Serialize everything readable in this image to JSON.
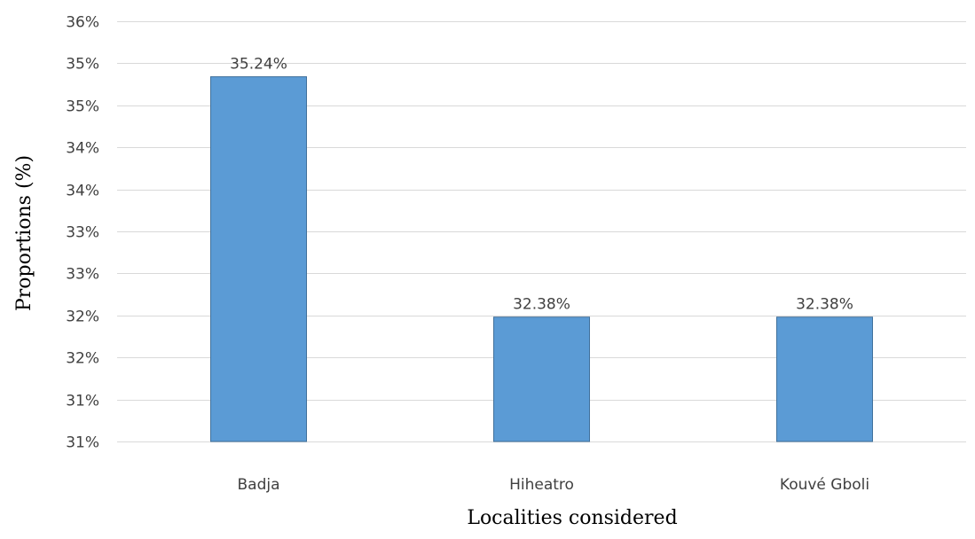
{
  "chart_data": {
    "type": "bar",
    "categories": [
      "Badja",
      "Hiheatro",
      "Kouvé Gboli"
    ],
    "values": [
      35.24,
      32.38,
      32.38
    ],
    "data_labels": [
      "35.24%",
      "32.38%",
      "32.38%"
    ],
    "xlabel": "Localities considered",
    "ylabel": "Proportions (%)",
    "ylim": [
      30.9,
      35.9
    ],
    "y_ticks": [
      {
        "value": 30.9,
        "label": "31%"
      },
      {
        "value": 31.4,
        "label": "31%"
      },
      {
        "value": 31.9,
        "label": "32%"
      },
      {
        "value": 32.4,
        "label": "32%"
      },
      {
        "value": 32.9,
        "label": "33%"
      },
      {
        "value": 33.4,
        "label": "33%"
      },
      {
        "value": 33.9,
        "label": "34%"
      },
      {
        "value": 34.4,
        "label": "34%"
      },
      {
        "value": 34.9,
        "label": "35%"
      },
      {
        "value": 35.4,
        "label": "35%"
      },
      {
        "value": 35.9,
        "label": "36%"
      }
    ],
    "grid": true,
    "bar_color": "#5b9bd5",
    "bar_border_color": "#41719c",
    "grid_color": "#d9d9d9"
  }
}
